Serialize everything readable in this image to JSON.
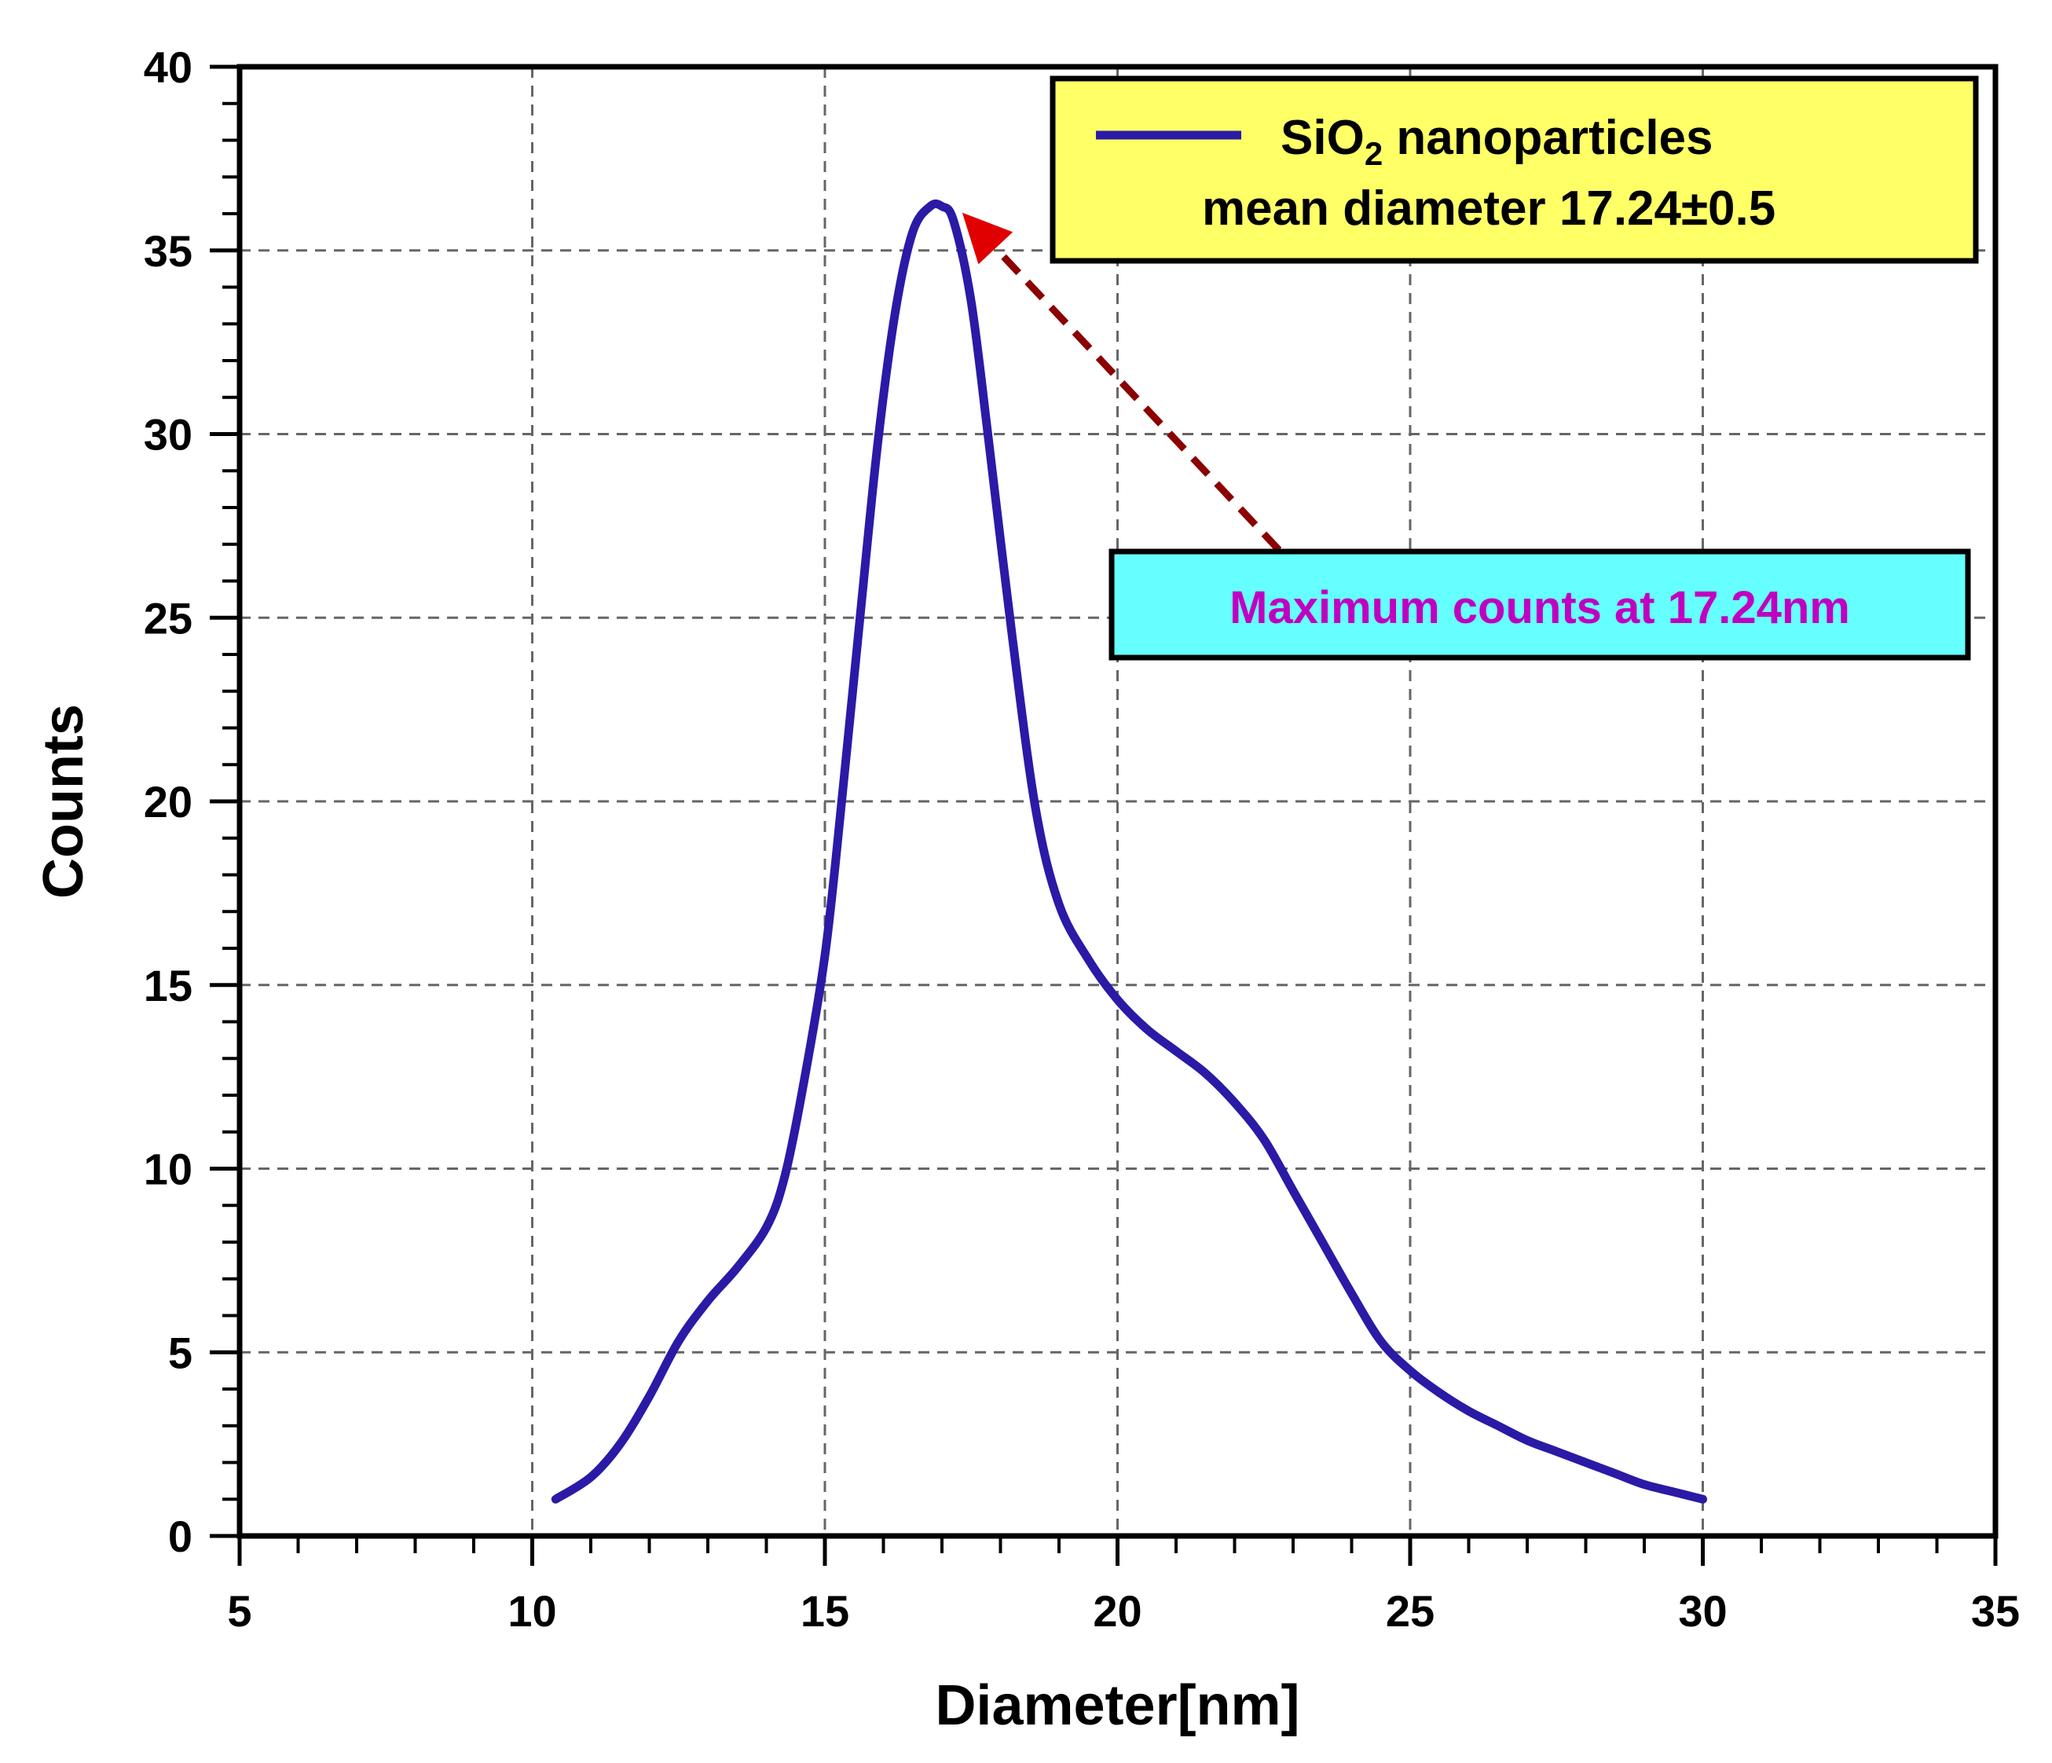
{
  "colors": {
    "series_line": "#2a1aa6",
    "legend_bg": "#ffff66",
    "annotation_bg": "#66ffff",
    "annotation_text": "#c000c0",
    "arrow": "#8b0000",
    "grid": "#666666",
    "axis": "#000000"
  },
  "chart_data": {
    "type": "line",
    "title": "",
    "xlabel": "Diameter[nm]",
    "ylabel": "Counts",
    "xlim": [
      5,
      35
    ],
    "ylim": [
      0,
      40
    ],
    "grid": true,
    "x_ticks": [
      5,
      10,
      15,
      20,
      25,
      30,
      35
    ],
    "y_ticks": [
      0,
      5,
      10,
      15,
      20,
      25,
      30,
      35,
      40
    ],
    "legend": {
      "position": "top-right",
      "line1_main": "SiO",
      "line1_sub": "2",
      "line1_rest": " nanoparticles",
      "line2": "mean diameter 17.24±0.5"
    },
    "annotation": {
      "text": "Maximum counts at 17.24nm",
      "target_x": 17.24,
      "target_y": 36.2
    },
    "series": [
      {
        "name": "SiO2 nanoparticles",
        "x": [
          10.4,
          11.0,
          11.5,
          12.0,
          12.5,
          13.0,
          13.5,
          14.0,
          14.3,
          14.6,
          15.0,
          15.3,
          15.6,
          15.9,
          16.2,
          16.5,
          16.8,
          17.0,
          17.2,
          17.5,
          17.8,
          18.2,
          18.6,
          19.0,
          19.5,
          20.0,
          20.5,
          21.0,
          21.5,
          22.0,
          22.5,
          23.0,
          23.5,
          24.0,
          24.5,
          25.0,
          25.5,
          26.0,
          26.5,
          27.0,
          27.5,
          28.0,
          28.5,
          29.0,
          29.5,
          30.0
        ],
        "values": [
          1.0,
          1.6,
          2.5,
          3.8,
          5.3,
          6.4,
          7.3,
          8.4,
          9.7,
          12.0,
          15.8,
          20.2,
          25.0,
          29.7,
          33.3,
          35.5,
          36.2,
          36.2,
          35.8,
          33.6,
          29.8,
          24.5,
          19.8,
          17.2,
          15.7,
          14.6,
          13.8,
          13.2,
          12.6,
          11.8,
          10.8,
          9.4,
          8.0,
          6.6,
          5.3,
          4.5,
          3.9,
          3.4,
          3.0,
          2.6,
          2.3,
          2.0,
          1.7,
          1.4,
          1.2,
          1.0
        ]
      }
    ]
  }
}
